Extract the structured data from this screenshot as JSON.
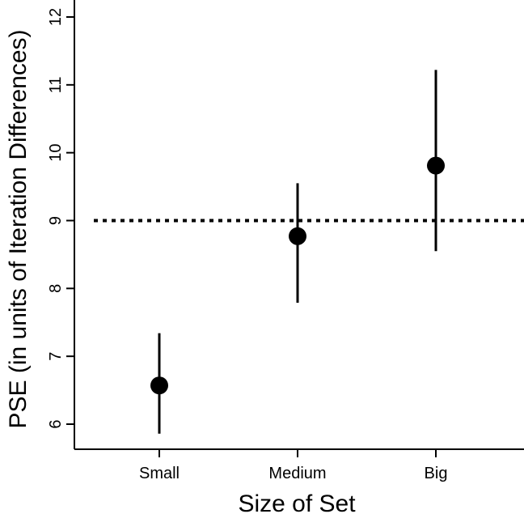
{
  "chart_data": {
    "type": "scatter",
    "title": "",
    "xlabel": "Size of Set",
    "ylabel": "PSE (in units of Iteration Differences)",
    "categories": [
      "Small",
      "Medium",
      "Big"
    ],
    "values": [
      6.57,
      8.77,
      9.81
    ],
    "error_low": [
      5.86,
      7.79,
      8.55
    ],
    "error_high": [
      7.34,
      9.55,
      11.22
    ],
    "ylim": [
      5.6,
      12.4
    ],
    "yticks": [
      6,
      7,
      8,
      9,
      10,
      11,
      12
    ],
    "ytick_labels": [
      "6",
      "7",
      "8",
      "9",
      "10",
      "11",
      "12"
    ],
    "reference_line": {
      "y": 9,
      "style": "dotted"
    },
    "grid": false,
    "colors": {
      "marker": "#000000",
      "line": "#000000"
    }
  }
}
